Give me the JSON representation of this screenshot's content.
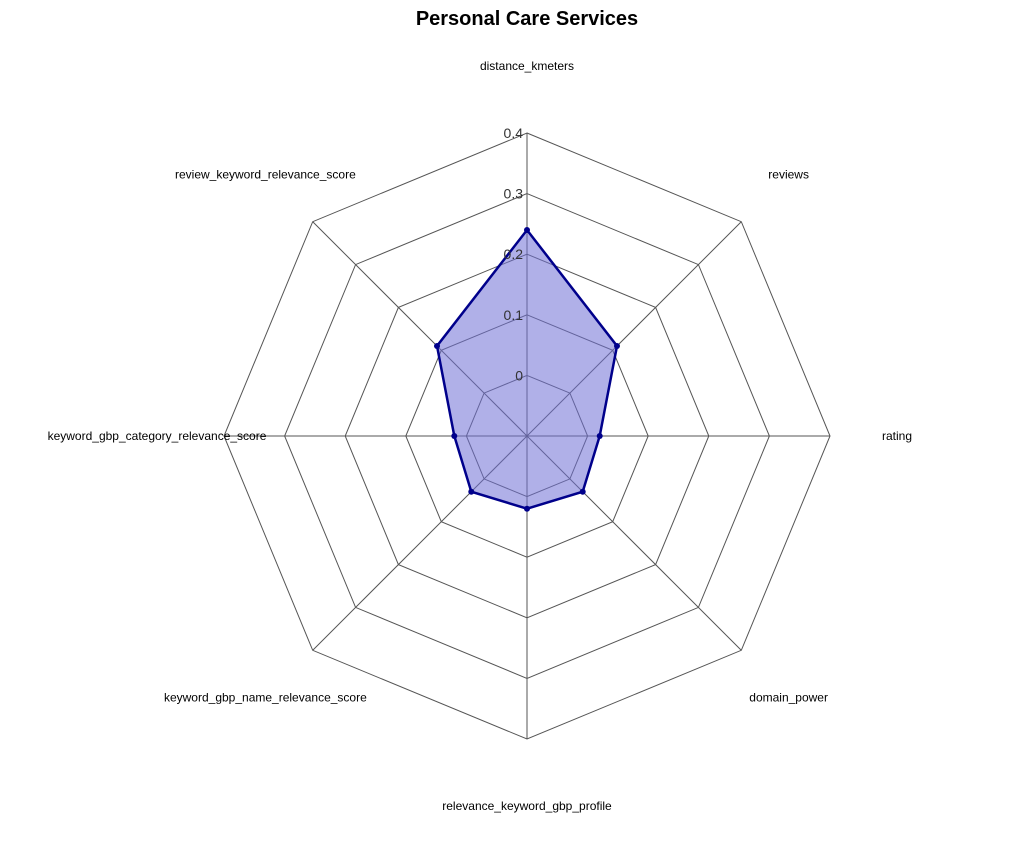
{
  "chart_data": {
    "type": "radar",
    "title": "Personal Care Services",
    "axes": [
      "distance_kmeters",
      "reviews",
      "rating",
      "domain_power",
      "relevance_keyword_gbp_profile",
      "keyword_gbp_name_relevance_score",
      "keyword_gbp_category_relevance_score",
      "review_keyword_relevance_score"
    ],
    "ticks": [
      "0",
      "0.1",
      "0.2",
      "0.3",
      "0.4"
    ],
    "rmin": -0.1,
    "rmax": 0.4,
    "grid": true,
    "series": [
      {
        "values": [
          0.24,
          0.11,
          0.02,
          0.03,
          0.02,
          0.03,
          0.02,
          0.11
        ],
        "color": "#00008b",
        "fill": "#6f6fd6"
      }
    ]
  }
}
